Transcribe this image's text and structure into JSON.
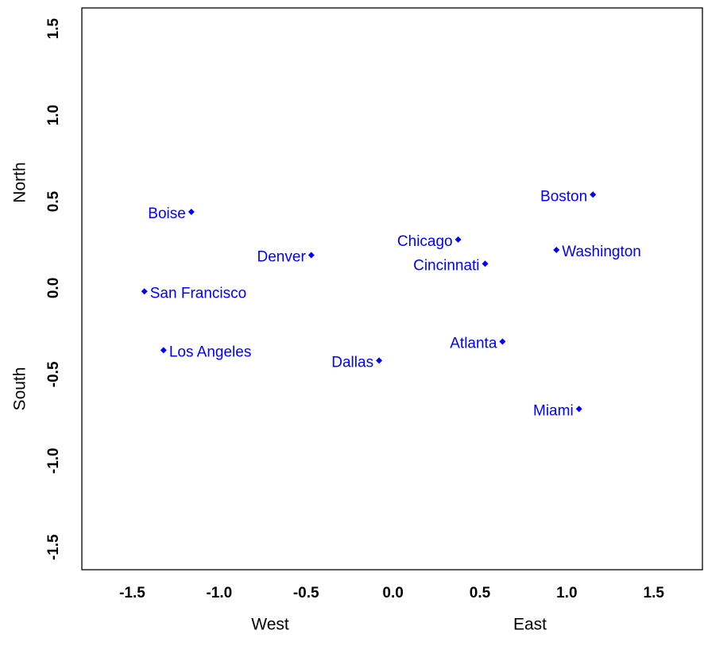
{
  "chart_data": {
    "type": "scatter",
    "labels": [
      "Boise",
      "Denver",
      "San Francisco",
      "Los Angeles",
      "Dallas",
      "Chicago",
      "Cincinnati",
      "Atlanta",
      "Miami",
      "Boston",
      "Washington"
    ],
    "x": [
      -1.16,
      -0.47,
      -1.43,
      -1.32,
      -0.08,
      0.375,
      0.53,
      0.63,
      1.07,
      1.15,
      0.94
    ],
    "values": [
      0.44,
      0.19,
      -0.02,
      -0.36,
      -0.42,
      0.28,
      0.14,
      -0.31,
      -0.7,
      0.54,
      0.22
    ],
    "color": "#0000ff",
    "x_axis_labels": [
      "West",
      "East"
    ],
    "y_axis_labels": [
      "North",
      "South"
    ],
    "xlim": [
      -1.79,
      1.78
    ],
    "ylim": [
      -1.63,
      1.62
    ],
    "xticks": [
      -1.5,
      {
        "value": -1,
        "label": "-1.0"
      },
      -0.5,
      {
        "value": 0,
        "label": "0.0"
      },
      0.5,
      {
        "value": 1,
        "label": "1.0"
      },
      1.5
    ],
    "yticks": [
      -1.5,
      {
        "value": -1,
        "label": "-1.0"
      },
      -0.5,
      {
        "value": 0,
        "label": "0.0"
      },
      0.5,
      {
        "value": 1,
        "label": "1.0"
      },
      1.5
    ]
  }
}
